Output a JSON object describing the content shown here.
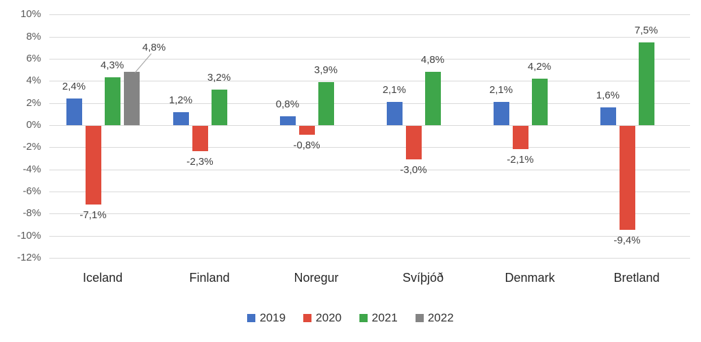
{
  "chart_data": {
    "type": "bar",
    "categories": [
      "Iceland",
      "Finland",
      "Noregur",
      "Svíþjóð",
      "Denmark",
      "Bretland"
    ],
    "series": [
      {
        "name": "2019",
        "color": "#4472C4",
        "values": [
          2.4,
          1.2,
          0.8,
          2.1,
          2.1,
          1.6
        ],
        "labels": [
          "2,4%",
          "1,2%",
          "0,8%",
          "2,1%",
          "2,1%",
          "1,6%"
        ]
      },
      {
        "name": "2020",
        "color": "#E04B3B",
        "values": [
          -7.1,
          -2.3,
          -0.8,
          -3.0,
          -2.1,
          -9.4
        ],
        "labels": [
          "-7,1%",
          "-2,3%",
          "-0,8%",
          "-3,0%",
          "-2,1%",
          "-9,4%"
        ]
      },
      {
        "name": "2021",
        "color": "#3EA64A",
        "values": [
          4.3,
          3.2,
          3.9,
          4.8,
          4.2,
          7.5
        ],
        "labels": [
          "4,3%",
          "3,2%",
          "3,9%",
          "4,8%",
          "4,2%",
          "7,5%"
        ]
      },
      {
        "name": "2022",
        "color": "#848484",
        "values": [
          4.8,
          null,
          null,
          null,
          null,
          null
        ],
        "labels": [
          "4,8%",
          null,
          null,
          null,
          null,
          null
        ],
        "callout_category": 0
      }
    ],
    "y_axis": {
      "min": -12,
      "max": 10,
      "step": 2,
      "tick_labels": [
        "10%",
        "8%",
        "6%",
        "4%",
        "2%",
        "0%",
        "-2%",
        "-4%",
        "-6%",
        "-8%",
        "-10%",
        "-12%"
      ]
    },
    "legend": {
      "position": "bottom",
      "items": [
        {
          "label": "2019",
          "color": "#4472C4"
        },
        {
          "label": "2020",
          "color": "#E04B3B"
        },
        {
          "label": "2021",
          "color": "#3EA64A"
        },
        {
          "label": "2022",
          "color": "#848484"
        }
      ]
    },
    "grid": true,
    "colors": {
      "gridline": "#d9d9d9",
      "y_tick_text": "#595959",
      "value_label_text": "#404040",
      "category_text": "#262626",
      "callout_line": "#a6a6a6"
    }
  }
}
